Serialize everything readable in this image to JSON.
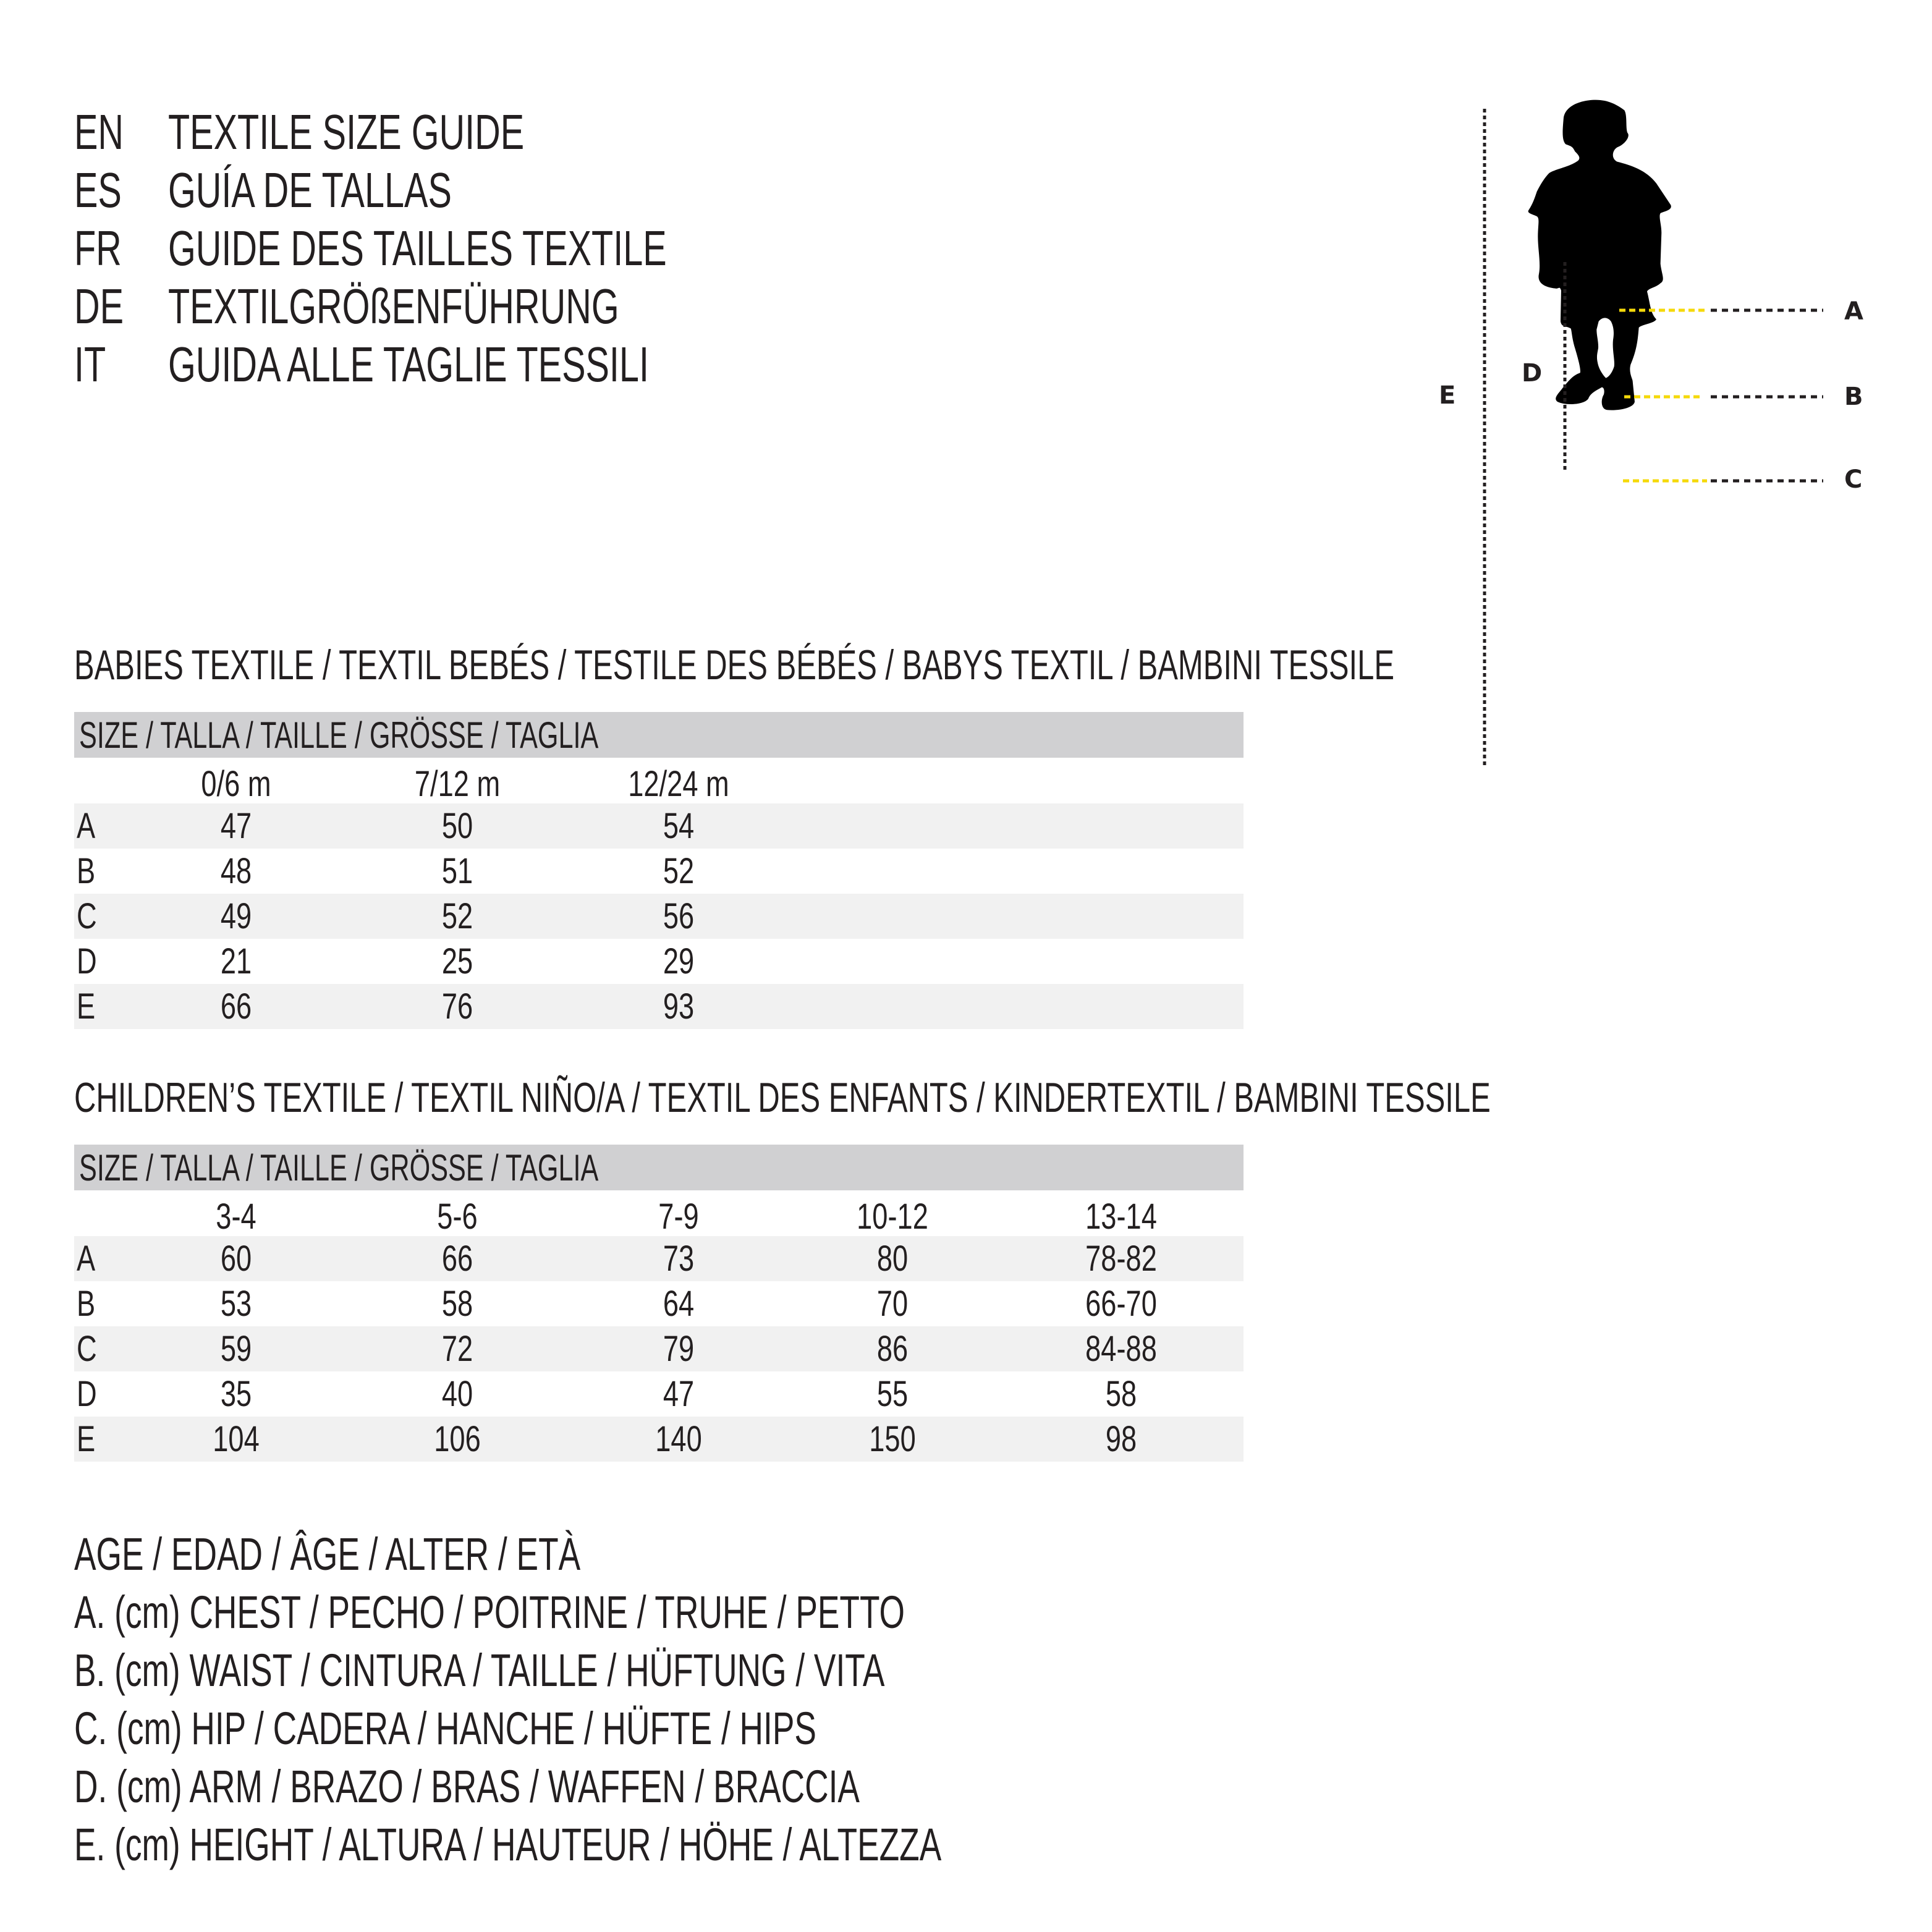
{
  "header": {
    "lines": [
      {
        "lang": "EN",
        "text": "TEXTILE SIZE GUIDE"
      },
      {
        "lang": "ES",
        "text": "GUÍA DE TALLAS"
      },
      {
        "lang": "FR",
        "text": "GUIDE DES TAILLES TEXTILE"
      },
      {
        "lang": "DE",
        "text": "TEXTILGRÖßENFÜHRUNG"
      },
      {
        "lang": "IT",
        "text": "GUIDA ALLE TAGLIE TESSILI"
      }
    ]
  },
  "babies": {
    "title": "BABIES TEXTILE / TEXTIL BEBÉS / TESTILE DES BÉBÉS / BABYS TEXTIL / BAMBINI TESSILE",
    "size_label": "SIZE / TALLA / TAILLE / GRÖSSE / TAGLIA",
    "columns": [
      "0/6 m",
      "7/12 m",
      "12/24 m"
    ],
    "rows": [
      {
        "label": "A",
        "values": [
          "47",
          "50",
          "54"
        ]
      },
      {
        "label": "B",
        "values": [
          "48",
          "51",
          "52"
        ]
      },
      {
        "label": "C",
        "values": [
          "49",
          "52",
          "56"
        ]
      },
      {
        "label": "D",
        "values": [
          "21",
          "25",
          "29"
        ]
      },
      {
        "label": "E",
        "values": [
          "66",
          "76",
          "93"
        ]
      }
    ]
  },
  "children": {
    "title": "CHILDREN’S TEXTILE / TEXTIL NIÑO/A / TEXTIL DES ENFANTS / KINDERTEXTIL / BAMBINI TESSILE",
    "size_label": "SIZE / TALLA / TAILLE / GRÖSSE / TAGLIA",
    "columns": [
      "3-4",
      "5-6",
      "7-9",
      "10-12",
      "13-14"
    ],
    "rows": [
      {
        "label": "A",
        "values": [
          "60",
          "66",
          "73",
          "80",
          "78-82"
        ]
      },
      {
        "label": "B",
        "values": [
          "53",
          "58",
          "64",
          "70",
          "66-70"
        ]
      },
      {
        "label": "C",
        "values": [
          "59",
          "72",
          "79",
          "86",
          "84-88"
        ]
      },
      {
        "label": "D",
        "values": [
          "35",
          "40",
          "47",
          "55",
          "58"
        ]
      },
      {
        "label": "E",
        "values": [
          "104",
          "106",
          "140",
          "150",
          "98"
        ]
      }
    ]
  },
  "legend": [
    "AGE / EDAD / ÂGE / ALTER / ETÀ",
    "A. (cm) CHEST / PECHO / POITRINE / TRUHE / PETTO",
    "B. (cm) WAIST / CINTURA / TAILLE / HÜFTUNG / VITA",
    "C. (cm) HIP / CADERA / HANCHE / HÜFTE / HIPS",
    "D. (cm) ARM / BRAZO / BRAS / WAFFEN / BRACCIA",
    "E. (cm) HEIGHT / ALTURA / HAUTEUR / HÖHE / ALTEZZA"
  ],
  "figure": {
    "labels": {
      "a": "A",
      "b": "B",
      "c": "C",
      "d": "D",
      "e": "E"
    },
    "colors": {
      "silhouette": "#000000",
      "measure_line": "#f5d90a",
      "guide_line": "#231f20",
      "header_bar": "#d0d0d2",
      "stripe": "#f1f1f1"
    }
  }
}
